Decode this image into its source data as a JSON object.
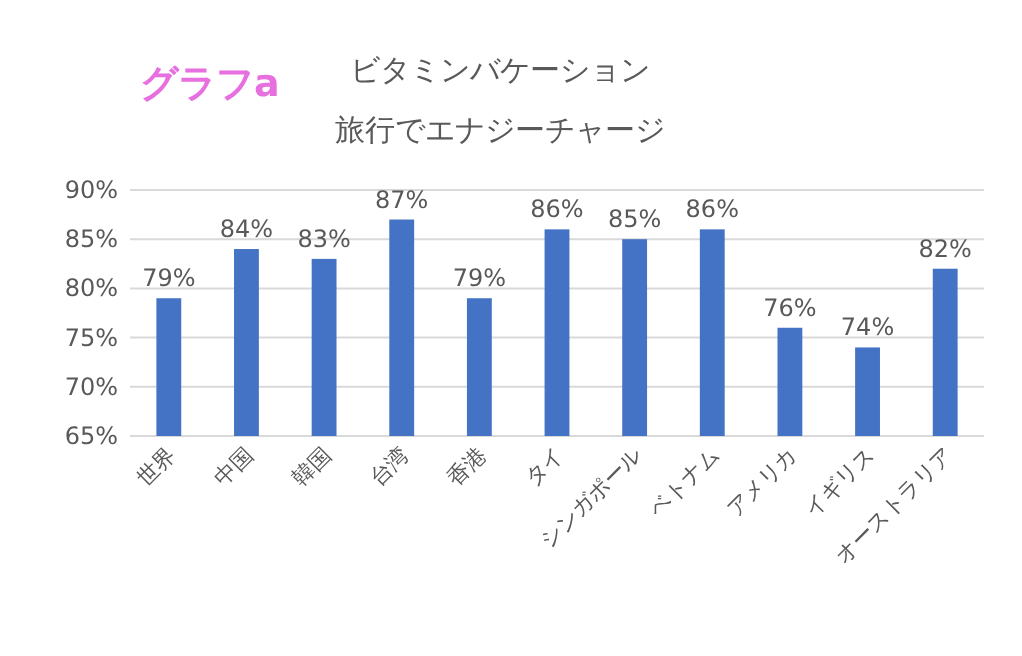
{
  "chart_data": {
    "type": "bar",
    "title": "ビタミンバケーション",
    "subtitle": "旅行でエナジーチャージ",
    "annotations": [
      "グラフa"
    ],
    "categories": [
      "世界",
      "中国",
      "韓国",
      "台湾",
      "香港",
      "タイ",
      "シンガポール",
      "ベトナム",
      "アメリカ",
      "イギリス",
      "オーストラリア"
    ],
    "values": [
      79,
      84,
      83,
      87,
      79,
      86,
      85,
      86,
      76,
      74,
      82
    ],
    "value_labels": [
      "79%",
      "84%",
      "83%",
      "87%",
      "79%",
      "86%",
      "85%",
      "86%",
      "76%",
      "74%",
      "82%"
    ],
    "color": "#4472c4",
    "ylim": [
      65,
      90
    ],
    "yticks": [
      {
        "value": 65,
        "label": "65%"
      },
      {
        "value": 70,
        "label": "70%"
      },
      {
        "value": 75,
        "label": "75%"
      },
      {
        "value": 80,
        "label": "80%"
      },
      {
        "value": 85,
        "label": "85%"
      },
      {
        "value": 90,
        "label": "90%"
      }
    ],
    "grid": "y"
  }
}
